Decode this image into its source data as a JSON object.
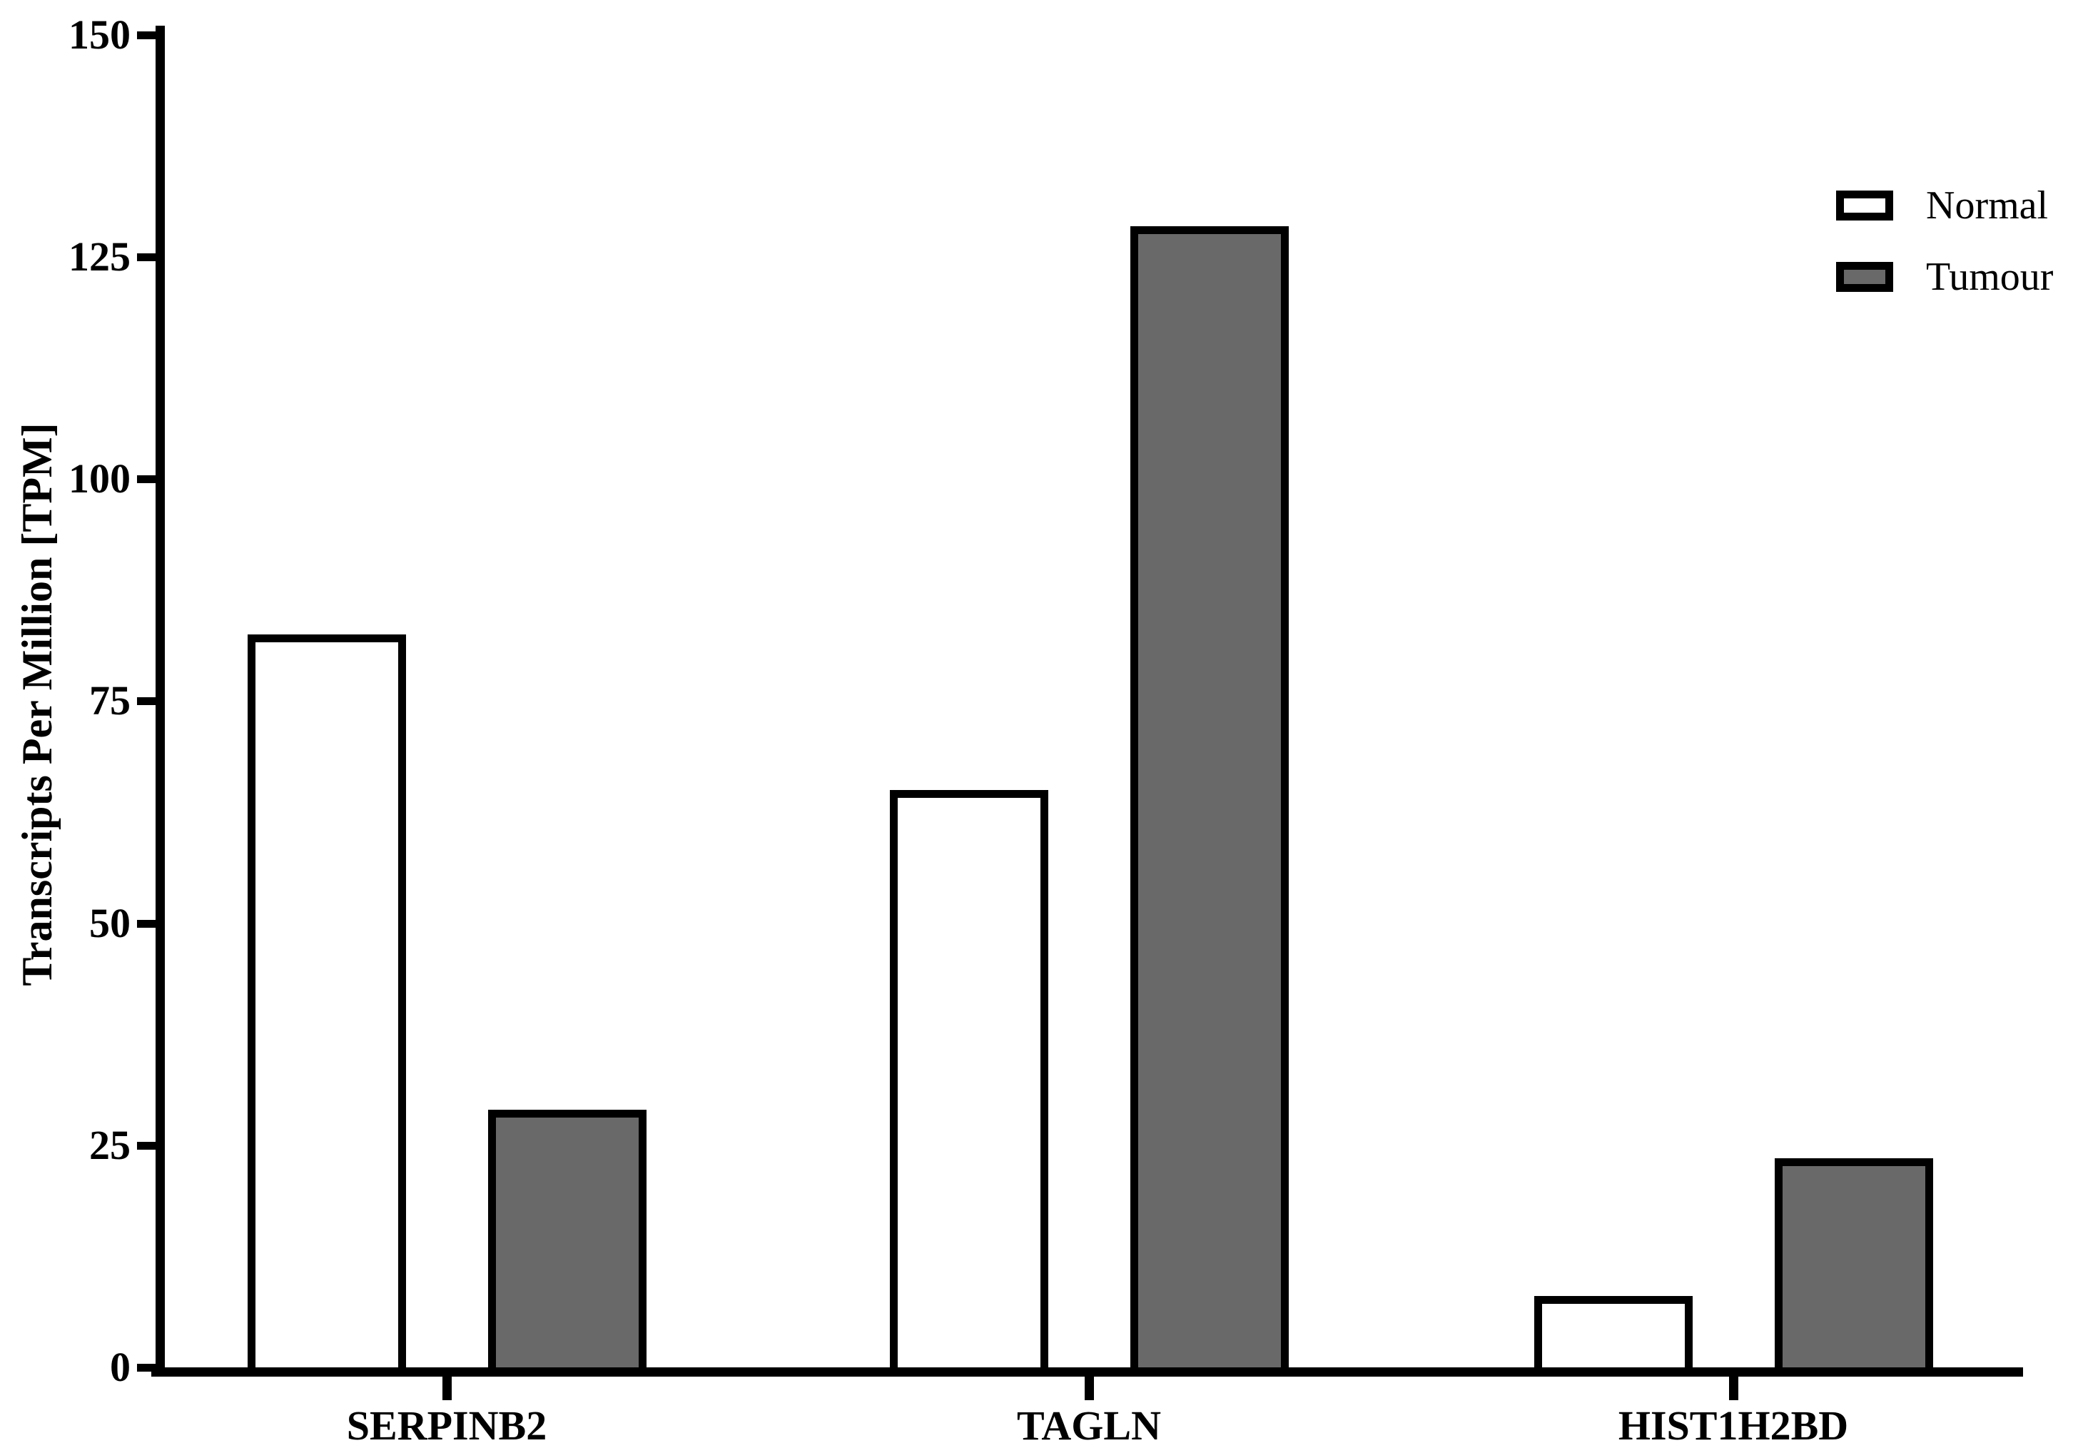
{
  "figure": {
    "background": "#ffffff",
    "bar_outline_color": "#000000",
    "axis_color": "#000000"
  },
  "chart_data": {
    "type": "bar",
    "title": "",
    "xlabel": "",
    "ylabel": "Transcripts Per Million [TPM]",
    "categories": [
      "SERPINB2",
      "TAGLN",
      "HIST1H2BD"
    ],
    "series": [
      {
        "name": "Normal",
        "fill": "#ffffff",
        "values": [
          82.5,
          65,
          8
        ]
      },
      {
        "name": "Tumour",
        "fill": "#696969",
        "values": [
          29,
          128.5,
          23.5
        ]
      }
    ],
    "ylim": [
      0,
      150
    ],
    "yticks": [
      0,
      25,
      50,
      75,
      100,
      125,
      150
    ],
    "grid": false,
    "legend_position": "top-right"
  },
  "legend": {
    "items": [
      {
        "label": "Normal",
        "fill": "#ffffff"
      },
      {
        "label": "Tumour",
        "fill": "#696969"
      }
    ]
  }
}
